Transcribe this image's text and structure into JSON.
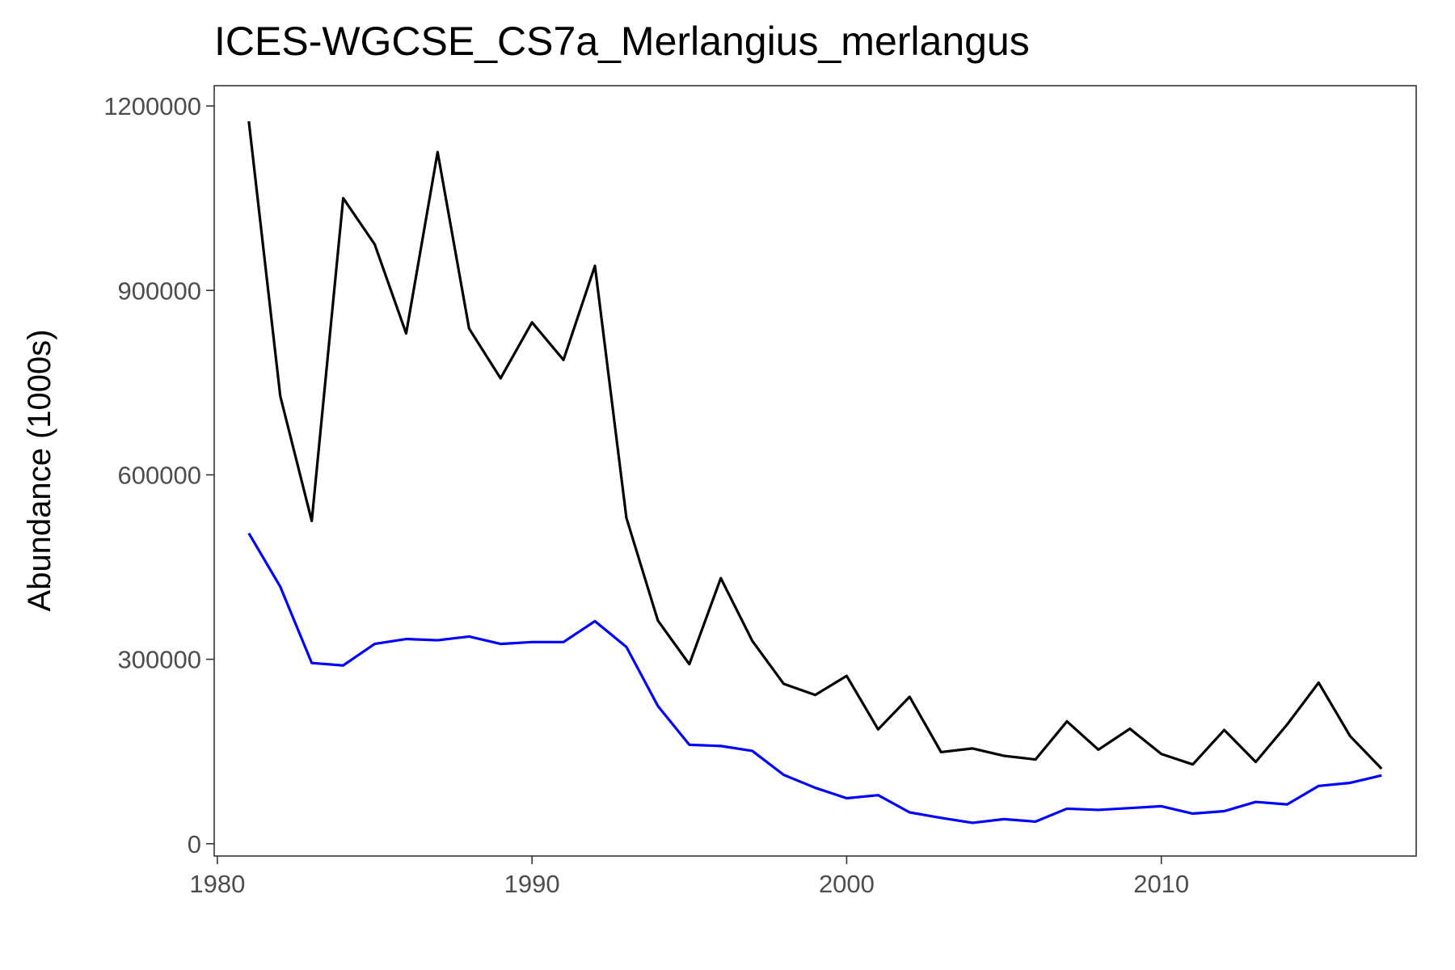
{
  "chart_data": {
    "type": "line",
    "title": "ICES-WGCSE_CS7a_Merlangius_merlangus",
    "xlabel": "",
    "ylabel": "Abundance (1000s)",
    "xlim": [
      1979.9,
      2018.1
    ],
    "ylim": [
      -20000,
      1233000
    ],
    "xticks": [
      1980,
      1990,
      2000,
      2010
    ],
    "yticks": [
      0,
      300000,
      600000,
      900000,
      1200000
    ],
    "grid": false,
    "legend": "none",
    "series": [
      {
        "color": "#000000",
        "x": [
          1981,
          1982,
          1983,
          1984,
          1985,
          1986,
          1987,
          1988,
          1989,
          1990,
          1991,
          1992,
          1993,
          1994,
          1995,
          1996,
          1997,
          1998,
          1999,
          2000,
          2001,
          2002,
          2003,
          2004,
          2005,
          2006,
          2007,
          2008,
          2009,
          2010,
          2011,
          2012,
          2013,
          2014,
          2015,
          2016,
          2017
        ],
        "values": [
          1175000,
          728000,
          525000,
          1050000,
          975000,
          830000,
          1125000,
          838000,
          757000,
          848000,
          787000,
          940000,
          530000,
          363000,
          292000,
          432000,
          330000,
          260000,
          242000,
          273000,
          186000,
          239000,
          149000,
          155000,
          143000,
          137000,
          199000,
          153000,
          187000,
          146000,
          129000,
          185000,
          133000,
          194000,
          262000,
          175000,
          122000
        ]
      },
      {
        "color": "#0000ff",
        "x": [
          1981,
          1982,
          1983,
          1984,
          1985,
          1986,
          1987,
          1988,
          1989,
          1990,
          1991,
          1992,
          1993,
          1994,
          1995,
          1996,
          1997,
          1998,
          1999,
          2000,
          2001,
          2002,
          2003,
          2004,
          2005,
          2006,
          2007,
          2008,
          2009,
          2010,
          2011,
          2012,
          2013,
          2014,
          2015,
          2016,
          2017
        ],
        "values": [
          505000,
          418000,
          294000,
          290000,
          325000,
          333000,
          331000,
          337000,
          325000,
          328000,
          328000,
          362000,
          320000,
          224000,
          161000,
          159000,
          151000,
          112000,
          91000,
          74000,
          79000,
          51000,
          42000,
          34000,
          40000,
          36000,
          57000,
          55000,
          58000,
          61000,
          49000,
          53000,
          68000,
          64000,
          94000,
          99000,
          111000
        ]
      }
    ]
  }
}
